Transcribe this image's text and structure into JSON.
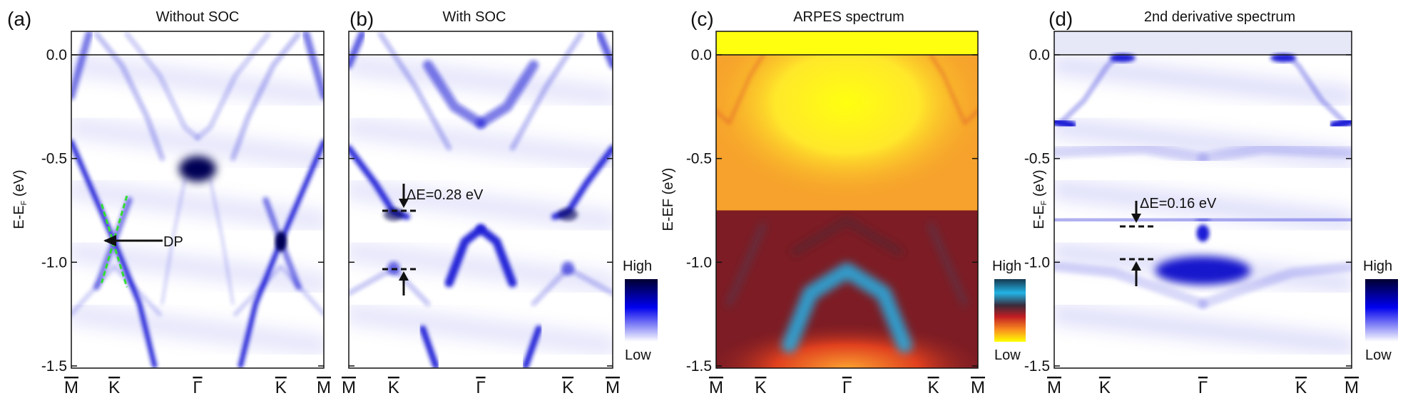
{
  "figure": {
    "panels": [
      {
        "letter": "(a)",
        "title": "Without SOC",
        "colormap": "white-blue-black",
        "annotation": {
          "text": "DP"
        }
      },
      {
        "letter": "(b)",
        "title": "With SOC",
        "colormap": "white-blue-black",
        "annotation": {
          "text": "ΔE=0.28 eV"
        }
      },
      {
        "letter": "(c)",
        "title": "ARPES spectrum",
        "colormap": "yellow-red-cyan"
      },
      {
        "letter": "(d)",
        "title": "2nd derivative spectrum",
        "colormap": "white-blue-black",
        "annotation": {
          "text": "ΔE=0.16 eV"
        }
      }
    ],
    "ylabel": {
      "main": "E-E",
      "sub": "F",
      "unit": " (eV)"
    },
    "colorbar": {
      "high": "High",
      "low": "Low"
    },
    "colors": {
      "band_blue": "#1a1ad6",
      "band_dark": "#000055",
      "dp_guide": "#33dd33",
      "arpes_low": "#ffff00",
      "arpes_mid": "#7d1c24",
      "arpes_high": "#2aa8dc"
    }
  },
  "chart_data": {
    "type": "heatmap",
    "xlabel": "",
    "ylabel": "E-EF (eV)",
    "ylim": [
      -1.5,
      0.1
    ],
    "yticks": [
      "0.0",
      "-0.5",
      "-1.0",
      "-1.5"
    ],
    "xticks": [
      "M",
      "K",
      "Γ",
      "K",
      "M"
    ],
    "fermi_level_line": 0.0,
    "annotations": [
      {
        "panel": "a",
        "text": "DP",
        "energy": -0.9,
        "k": "K"
      },
      {
        "panel": "b",
        "text": "ΔE=0.28 eV",
        "upper": -0.75,
        "lower": -1.03,
        "k": "K"
      },
      {
        "panel": "d",
        "text": "ΔE=0.16 eV",
        "upper": -0.82,
        "lower": -0.98,
        "k": "K"
      }
    ]
  }
}
